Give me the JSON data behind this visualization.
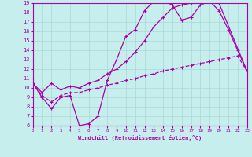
{
  "xlabel": "Windchill (Refroidissement éolien,°C)",
  "xlim": [
    0,
    23
  ],
  "ylim": [
    6,
    19
  ],
  "xticks": [
    0,
    1,
    2,
    3,
    4,
    5,
    6,
    7,
    8,
    9,
    10,
    11,
    12,
    13,
    14,
    15,
    16,
    17,
    18,
    19,
    20,
    21,
    22,
    23
  ],
  "yticks": [
    6,
    7,
    8,
    9,
    10,
    11,
    12,
    13,
    14,
    15,
    16,
    17,
    18,
    19
  ],
  "bg_color": "#c5eeed",
  "grid_color": "#aad8d8",
  "line_color": "#aa00aa",
  "line1_x": [
    0,
    1,
    2,
    3,
    4,
    5,
    6,
    7,
    8,
    9,
    10,
    11,
    12,
    13,
    14,
    15,
    16,
    17,
    18,
    19,
    20,
    21,
    22,
    23
  ],
  "line1_y": [
    10.5,
    9.0,
    7.8,
    9.0,
    9.2,
    6.0,
    6.2,
    7.0,
    10.8,
    13.0,
    15.5,
    16.2,
    18.2,
    19.2,
    19.2,
    18.8,
    17.2,
    17.5,
    18.8,
    19.2,
    18.2,
    16.2,
    14.0,
    11.8
  ],
  "line2_x": [
    0,
    1,
    2,
    3,
    4,
    5,
    6,
    7,
    8,
    9,
    10,
    11,
    12,
    13,
    14,
    15,
    16,
    17,
    18,
    19,
    20,
    23
  ],
  "line2_y": [
    10.5,
    9.5,
    10.5,
    9.8,
    10.2,
    10.0,
    10.5,
    10.8,
    11.5,
    12.0,
    12.8,
    13.8,
    15.0,
    16.5,
    17.5,
    18.5,
    18.8,
    19.0,
    19.2,
    19.2,
    19.0,
    11.8
  ],
  "line3_x": [
    0,
    1,
    2,
    3,
    4,
    5,
    6,
    7,
    8,
    9,
    10,
    11,
    12,
    13,
    14,
    15,
    16,
    17,
    18,
    19,
    20,
    21,
    22,
    23
  ],
  "line3_y": [
    10.5,
    9.2,
    8.5,
    9.2,
    9.5,
    9.5,
    9.8,
    10.0,
    10.3,
    10.5,
    10.8,
    11.0,
    11.3,
    11.5,
    11.8,
    12.0,
    12.2,
    12.4,
    12.6,
    12.8,
    13.0,
    13.2,
    13.4,
    11.8
  ]
}
